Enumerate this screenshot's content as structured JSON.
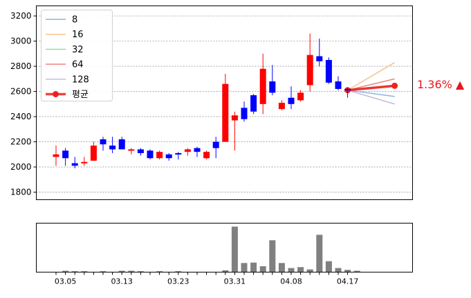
{
  "chart_data": [
    {
      "type": "candlestick",
      "ylim": [
        1740,
        3280
      ],
      "yticks": [
        1800,
        2000,
        2200,
        2400,
        2600,
        2800,
        3000,
        3200
      ],
      "grid": true,
      "legend_position": "top-left",
      "colors": {
        "up": "#ff0000",
        "down": "#0000ff"
      },
      "candles": [
        {
          "o": 2080,
          "c": 2100,
          "h": 2170,
          "l": 2010
        },
        {
          "o": 2130,
          "c": 2070,
          "h": 2150,
          "l": 2010
        },
        {
          "o": 2030,
          "c": 2010,
          "h": 2080,
          "l": 1990
        },
        {
          "o": 2030,
          "c": 2040,
          "h": 2080,
          "l": 2010
        },
        {
          "o": 2050,
          "c": 2170,
          "h": 2200,
          "l": 2050
        },
        {
          "o": 2220,
          "c": 2180,
          "h": 2240,
          "l": 2130
        },
        {
          "o": 2170,
          "c": 2140,
          "h": 2240,
          "l": 2110
        },
        {
          "o": 2220,
          "c": 2140,
          "h": 2240,
          "l": 2140
        },
        {
          "o": 2130,
          "c": 2140,
          "h": 2150,
          "l": 2100
        },
        {
          "o": 2140,
          "c": 2110,
          "h": 2150,
          "l": 2090
        },
        {
          "o": 2130,
          "c": 2070,
          "h": 2140,
          "l": 2060
        },
        {
          "o": 2070,
          "c": 2120,
          "h": 2130,
          "l": 2060
        },
        {
          "o": 2100,
          "c": 2070,
          "h": 2110,
          "l": 2050
        },
        {
          "o": 2110,
          "c": 2100,
          "h": 2120,
          "l": 2060
        },
        {
          "o": 2120,
          "c": 2140,
          "h": 2150,
          "l": 2090
        },
        {
          "o": 2150,
          "c": 2120,
          "h": 2160,
          "l": 2080
        },
        {
          "o": 2070,
          "c": 2120,
          "h": 2130,
          "l": 2060
        },
        {
          "o": 2200,
          "c": 2150,
          "h": 2240,
          "l": 2070
        },
        {
          "o": 2200,
          "c": 2660,
          "h": 2740,
          "l": 2200
        },
        {
          "o": 2370,
          "c": 2410,
          "h": 2440,
          "l": 2130
        },
        {
          "o": 2470,
          "c": 2380,
          "h": 2520,
          "l": 2360
        },
        {
          "o": 2570,
          "c": 2440,
          "h": 2580,
          "l": 2420
        },
        {
          "o": 2500,
          "c": 2780,
          "h": 2900,
          "l": 2420
        },
        {
          "o": 2680,
          "c": 2590,
          "h": 2810,
          "l": 2570
        },
        {
          "o": 2460,
          "c": 2510,
          "h": 2530,
          "l": 2450
        },
        {
          "o": 2550,
          "c": 2500,
          "h": 2640,
          "l": 2460
        },
        {
          "o": 2530,
          "c": 2590,
          "h": 2610,
          "l": 2520
        },
        {
          "o": 2650,
          "c": 2890,
          "h": 3060,
          "l": 2600
        },
        {
          "o": 2880,
          "c": 2840,
          "h": 3020,
          "l": 2800
        },
        {
          "o": 2850,
          "c": 2670,
          "h": 2870,
          "l": 2660
        },
        {
          "o": 2680,
          "c": 2620,
          "h": 2720,
          "l": 2610
        },
        {
          "o": 2620,
          "c": 2610,
          "h": 2630,
          "l": 2550
        }
      ],
      "projection": {
        "start_index": 31,
        "start_value": 2610,
        "end_index": 36,
        "lines": [
          {
            "name": "8",
            "color": "#6fa8dc",
            "end": 2560
          },
          {
            "name": "16",
            "color": "#f6b26b",
            "end": 2830
          },
          {
            "name": "32",
            "color": "#7bd67b",
            "end": 2650
          },
          {
            "name": "64",
            "color": "#e06666",
            "end": 2700
          },
          {
            "name": "128",
            "color": "#b4a7d6",
            "end": 2500
          }
        ],
        "average": {
          "name": "평균",
          "color": "#ee2222",
          "end": 2645
        }
      },
      "percent_label": "1.36% ▲",
      "percent_color": "#e8161b"
    },
    {
      "type": "bar",
      "bar_color": "#808080",
      "ylim": [
        0,
        100
      ],
      "tick_labels": [
        {
          "index": 1,
          "label": "03.05"
        },
        {
          "index": 7,
          "label": "03.13"
        },
        {
          "index": 13,
          "label": "03.23"
        },
        {
          "index": 19,
          "label": "03.31"
        },
        {
          "index": 25,
          "label": "04.08"
        },
        {
          "index": 31,
          "label": "04.17"
        }
      ],
      "minor_tick_count": 32,
      "values": [
        0,
        3,
        2,
        2,
        0,
        2,
        0,
        3,
        3,
        2,
        0,
        2,
        0,
        2,
        0,
        0,
        0,
        0,
        4,
        100,
        20,
        21,
        13,
        70,
        20,
        9,
        11,
        6,
        82,
        24,
        9,
        5,
        3,
        0,
        0,
        0,
        0,
        0
      ]
    }
  ]
}
